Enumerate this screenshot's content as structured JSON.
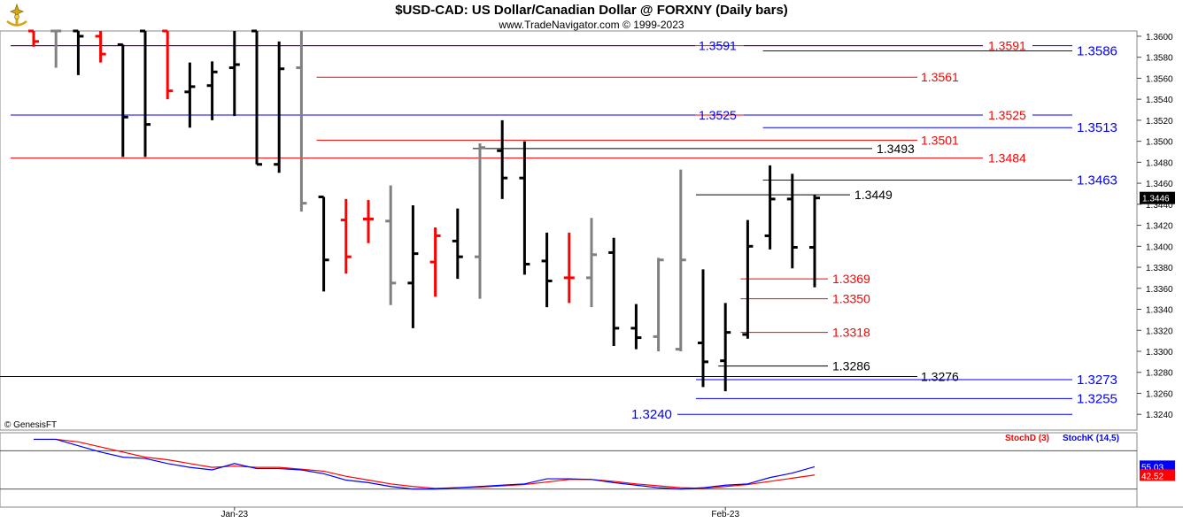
{
  "header": {
    "title": "$USD-CAD:  US Dollar/Canadian Dollar @ FORXNY  (Daily bars)",
    "subtitle": "www.TradeNavigator.com © 1999-2023",
    "logo_icon": "trade-navigator-logo-icon"
  },
  "watermark": "© GenesisFT",
  "colors": {
    "up_bar": "#000000",
    "down_bar": "#ff0000",
    "neutral_bar": "#808080",
    "support_line": "#0000ff",
    "resistance_line": "#ff0000",
    "stoch_d": "#ff0000",
    "stoch_k": "#0000ff",
    "last_price_bg": "#000000"
  },
  "chart_data": {
    "type": "ohlc",
    "title": "$USD-CAD:  US Dollar/Canadian Dollar @ FORXNY  (Daily bars)",
    "xlabel": "",
    "ylabel": "",
    "ylim": [
      1.3225,
      1.3605
    ],
    "y_ticks": [
      "1.3600",
      "1.3580",
      "1.3560",
      "1.3540",
      "1.3520",
      "1.3500",
      "1.3480",
      "1.3460",
      "1.3440",
      "1.3420",
      "1.3400",
      "1.3380",
      "1.3360",
      "1.3340",
      "1.3320",
      "1.3300",
      "1.3280",
      "1.3260",
      "1.3240"
    ],
    "x_labels": [
      {
        "label": "Jan-23",
        "bar": 9
      },
      {
        "label": "Feb-23",
        "bar": 31
      }
    ],
    "last_price": "1.3446",
    "bars": [
      {
        "o": 1.3605,
        "h": 1.3605,
        "l": 1.359,
        "c": 1.3595,
        "color": "down"
      },
      {
        "o": 1.3605,
        "h": 1.3605,
        "l": 1.357,
        "c": 1.3605,
        "color": "neutral"
      },
      {
        "o": 1.3605,
        "h": 1.3605,
        "l": 1.3563,
        "c": 1.36,
        "color": "up"
      },
      {
        "o": 1.36,
        "h": 1.3605,
        "l": 1.3575,
        "c": 1.3583,
        "color": "down"
      },
      {
        "o": 1.3592,
        "h": 1.3592,
        "l": 1.3485,
        "c": 1.3523,
        "color": "up"
      },
      {
        "o": 1.3605,
        "h": 1.3605,
        "l": 1.3485,
        "c": 1.3516,
        "color": "up"
      },
      {
        "o": 1.3605,
        "h": 1.3605,
        "l": 1.354,
        "c": 1.3548,
        "color": "down"
      },
      {
        "o": 1.3547,
        "h": 1.3575,
        "l": 1.3513,
        "c": 1.3552,
        "color": "up"
      },
      {
        "o": 1.3553,
        "h": 1.3576,
        "l": 1.352,
        "c": 1.3566,
        "color": "up"
      },
      {
        "o": 1.357,
        "h": 1.3605,
        "l": 1.3524,
        "c": 1.3573,
        "color": "up"
      },
      {
        "o": 1.3605,
        "h": 1.3605,
        "l": 1.3478,
        "c": 1.3478,
        "color": "up"
      },
      {
        "o": 1.3478,
        "h": 1.3595,
        "l": 1.347,
        "c": 1.3569,
        "color": "up"
      },
      {
        "o": 1.357,
        "h": 1.3605,
        "l": 1.3433,
        "c": 1.3441,
        "color": "neutral"
      },
      {
        "o": 1.3447,
        "h": 1.3447,
        "l": 1.3357,
        "c": 1.3387,
        "color": "up"
      },
      {
        "o": 1.3425,
        "h": 1.3445,
        "l": 1.3374,
        "c": 1.339,
        "color": "down"
      },
      {
        "o": 1.3426,
        "h": 1.3444,
        "l": 1.3403,
        "c": 1.3426,
        "color": "down"
      },
      {
        "o": 1.3424,
        "h": 1.3458,
        "l": 1.3344,
        "c": 1.3365,
        "color": "neutral"
      },
      {
        "o": 1.3365,
        "h": 1.3439,
        "l": 1.3322,
        "c": 1.3393,
        "color": "up"
      },
      {
        "o": 1.3385,
        "h": 1.3418,
        "l": 1.3352,
        "c": 1.341,
        "color": "down"
      },
      {
        "o": 1.3405,
        "h": 1.3436,
        "l": 1.3369,
        "c": 1.339,
        "color": "up"
      },
      {
        "o": 1.339,
        "h": 1.3498,
        "l": 1.335,
        "c": 1.3494,
        "color": "neutral"
      },
      {
        "o": 1.3491,
        "h": 1.352,
        "l": 1.3445,
        "c": 1.3465,
        "color": "up"
      },
      {
        "o": 1.3465,
        "h": 1.35,
        "l": 1.3373,
        "c": 1.3383,
        "color": "up"
      },
      {
        "o": 1.3386,
        "h": 1.3413,
        "l": 1.3342,
        "c": 1.3367,
        "color": "up"
      },
      {
        "o": 1.337,
        "h": 1.3413,
        "l": 1.3346,
        "c": 1.337,
        "color": "down"
      },
      {
        "o": 1.337,
        "h": 1.3427,
        "l": 1.3342,
        "c": 1.3392,
        "color": "neutral"
      },
      {
        "o": 1.3394,
        "h": 1.3408,
        "l": 1.3305,
        "c": 1.3322,
        "color": "up"
      },
      {
        "o": 1.3322,
        "h": 1.3345,
        "l": 1.3302,
        "c": 1.3313,
        "color": "up"
      },
      {
        "o": 1.3314,
        "h": 1.3389,
        "l": 1.33,
        "c": 1.3387,
        "color": "neutral"
      },
      {
        "o": 1.3302,
        "h": 1.3473,
        "l": 1.33,
        "c": 1.3387,
        "color": "neutral"
      },
      {
        "o": 1.3308,
        "h": 1.3378,
        "l": 1.3266,
        "c": 1.329,
        "color": "up"
      },
      {
        "o": 1.3291,
        "h": 1.3346,
        "l": 1.3262,
        "c": 1.3318,
        "color": "up"
      },
      {
        "o": 1.3316,
        "h": 1.3425,
        "l": 1.3312,
        "c": 1.34,
        "color": "up"
      },
      {
        "o": 1.341,
        "h": 1.3477,
        "l": 1.3397,
        "c": 1.3445,
        "color": "up"
      },
      {
        "o": 1.3445,
        "h": 1.3469,
        "l": 1.3379,
        "c": 1.3399,
        "color": "up"
      },
      {
        "o": 1.3399,
        "h": 1.3449,
        "l": 1.3361,
        "c": 1.3446,
        "color": "up"
      }
    ],
    "levels": [
      {
        "value": 1.3591,
        "label": "1.3591",
        "color": "red",
        "start_bar": 0,
        "label_at": "far"
      },
      {
        "value": 1.3591,
        "label": "1.3591",
        "color": "blue",
        "start_bar": 31,
        "label_at": "near"
      },
      {
        "value": 1.3586,
        "label": "1.3586",
        "color": "blue",
        "start_bar": 33,
        "label_at": "right"
      },
      {
        "value": 1.3561,
        "label": "1.3561",
        "color": "red",
        "start_bar": 13,
        "label_at": "mid"
      },
      {
        "value": 1.3525,
        "label": "1.3525",
        "color": "red",
        "start_bar": 0,
        "label_at": "far"
      },
      {
        "value": 1.3525,
        "label": "1.3525",
        "color": "blue",
        "start_bar": 31,
        "label_at": "near"
      },
      {
        "value": 1.3513,
        "label": "1.3513",
        "color": "blue",
        "start_bar": 33,
        "label_at": "right"
      },
      {
        "value": 1.3501,
        "label": "1.3501",
        "color": "red",
        "start_bar": 13,
        "label_at": "mid"
      },
      {
        "value": 1.3493,
        "label": "1.3493",
        "color": "black",
        "start_bar": 20,
        "label_at": "mid2"
      },
      {
        "value": 1.3484,
        "label": "1.3484",
        "color": "red",
        "start_bar": 0,
        "label_at": "far"
      },
      {
        "value": 1.3463,
        "label": "1.3463",
        "color": "blue",
        "start_bar": 33,
        "label_at": "right"
      },
      {
        "value": 1.3449,
        "label": "1.3449",
        "color": "black",
        "start_bar": 30,
        "label_at": "near2"
      },
      {
        "value": 1.3369,
        "label": "1.3369",
        "color": "red",
        "start_bar": 32,
        "label_at": "near3"
      },
      {
        "value": 1.335,
        "label": "1.3350",
        "color": "red",
        "start_bar": 32,
        "label_at": "near3"
      },
      {
        "value": 1.3318,
        "label": "1.3318",
        "color": "red",
        "start_bar": 32,
        "label_at": "near3"
      },
      {
        "value": 1.3286,
        "label": "1.3286",
        "color": "black",
        "start_bar": 31,
        "label_at": "near3"
      },
      {
        "value": 1.3276,
        "label": "1.3276",
        "color": "black",
        "start_bar": 0,
        "label_at": "mid3"
      },
      {
        "value": 1.3273,
        "label": "1.3273",
        "color": "blue",
        "start_bar": 30,
        "label_at": "right"
      },
      {
        "value": 1.3255,
        "label": "1.3255",
        "color": "blue",
        "start_bar": 30,
        "label_at": "right"
      },
      {
        "value": 1.324,
        "label": "1.3240",
        "color": "blue",
        "start_bar": 31,
        "label_at": "left"
      }
    ],
    "indicator": {
      "legend_d": "StochD (3)",
      "legend_k": "StochK (14,5)",
      "last_k": "55.03",
      "last_d": "42.52",
      "ylim": [
        0,
        100
      ],
      "upper_line": 80,
      "lower_line": 20,
      "stoch_k": [
        98,
        98,
        88,
        78,
        70,
        68,
        60,
        54,
        50,
        60,
        52,
        52,
        50,
        44,
        34,
        30,
        24,
        20,
        20,
        22,
        24,
        26,
        28,
        36,
        36,
        35,
        30,
        26,
        22,
        20,
        22,
        26,
        28,
        38,
        45,
        55
      ],
      "stoch_d": [
        98,
        98,
        94,
        86,
        78,
        70,
        66,
        60,
        54,
        56,
        54,
        54,
        51,
        48,
        40,
        34,
        28,
        24,
        21,
        22,
        23,
        25,
        27,
        31,
        35,
        35,
        32,
        28,
        25,
        22,
        21,
        24,
        27,
        32,
        37,
        42
      ]
    }
  }
}
